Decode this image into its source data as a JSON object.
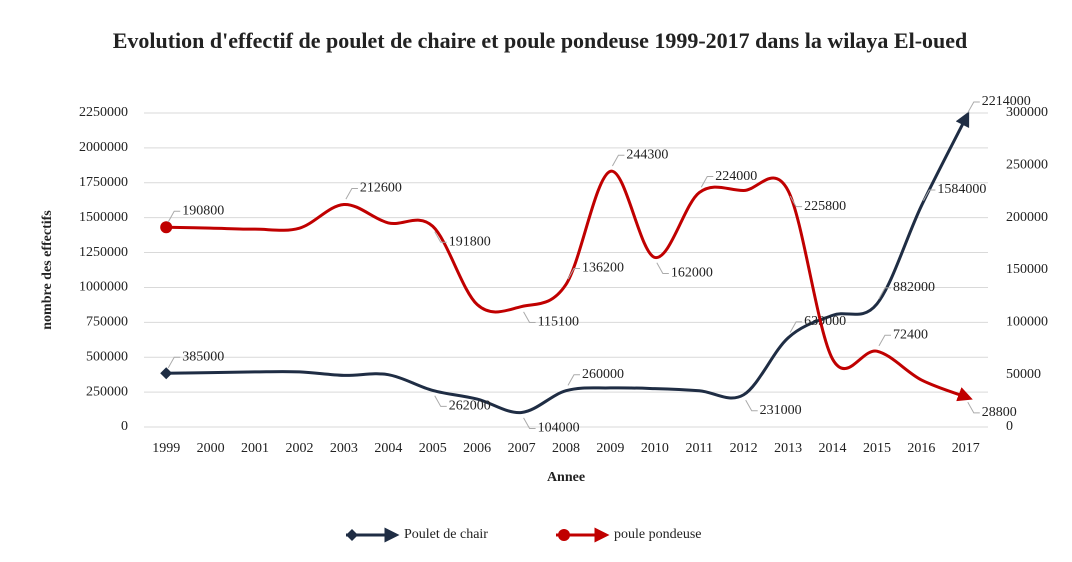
{
  "chart_data": {
    "type": "line",
    "title": "Evolution d'effectif de poulet de chaire et poule pondeuse 1999-2017 dans la wilaya El-oued",
    "x_label": "Annee",
    "y_label": "nombre des effectifs",
    "categories": [
      "1999",
      "2000",
      "2001",
      "2002",
      "2003",
      "2004",
      "2005",
      "2006",
      "2007",
      "2008",
      "2009",
      "2010",
      "2011",
      "2012",
      "2013",
      "2014",
      "2015",
      "2016",
      "2017"
    ],
    "series": [
      {
        "name": "Poulet de chair",
        "color": "#1f2d44",
        "axis": "y",
        "values": [
          385000,
          390000,
          395000,
          395000,
          370000,
          375000,
          262000,
          200000,
          104000,
          260000,
          280000,
          275000,
          260000,
          231000,
          639000,
          800000,
          882000,
          1584000,
          2214000
        ],
        "value_labels": [
          "385000",
          null,
          null,
          null,
          null,
          null,
          "262000",
          null,
          "104000",
          "260000",
          null,
          null,
          null,
          "231000",
          "639000",
          null,
          "882000",
          "1584000",
          "2214000"
        ]
      },
      {
        "name": "poule pondeuse",
        "color": "#c00000",
        "axis": "y2",
        "values": [
          190800,
          190000,
          189000,
          190000,
          212600,
          195000,
          191800,
          117000,
          115100,
          136200,
          244300,
          162000,
          224000,
          226000,
          225800,
          65000,
          72400,
          45000,
          28800
        ],
        "value_labels": [
          "190800",
          null,
          null,
          null,
          "212600",
          null,
          "191800",
          null,
          "115100",
          "136200",
          "244300",
          "162000",
          "224000",
          null,
          "225800",
          null,
          "72400",
          null,
          "28800"
        ]
      }
    ],
    "ylim": [
      0,
      2250000
    ],
    "yticks": [
      0,
      250000,
      500000,
      750000,
      1000000,
      1250000,
      1500000,
      1750000,
      2000000,
      2250000
    ],
    "y2lim": [
      0,
      300000
    ],
    "y2ticks": [
      0,
      50000,
      100000,
      150000,
      200000,
      250000,
      300000
    ],
    "grid": true,
    "legend": "bottom"
  }
}
